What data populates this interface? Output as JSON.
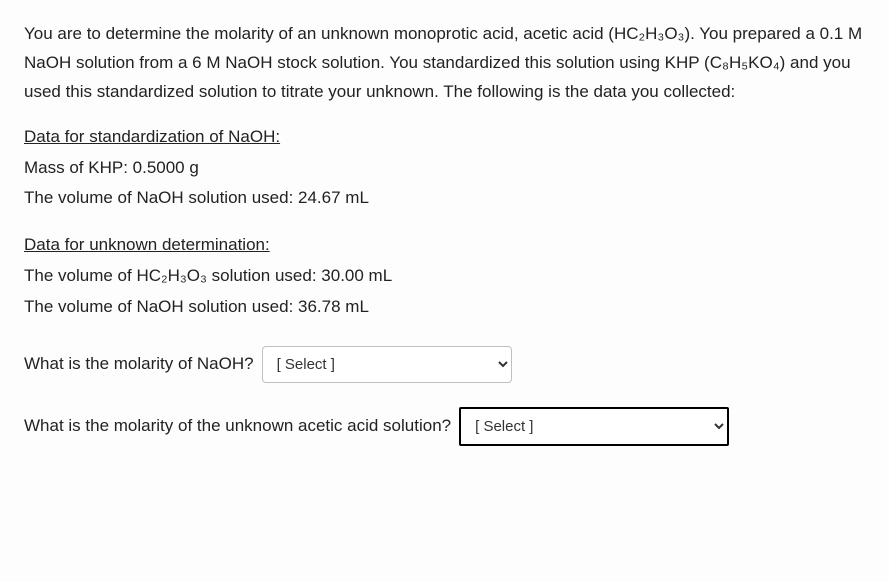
{
  "intro": {
    "text": "You are to determine the molarity of an unknown monoprotic acid, acetic acid (HC₂H₃O₃). You prepared a 0.1 M NaOH solution from a 6 M NaOH stock solution. You standardized this solution using KHP (C₈H₅KO₄) and you used this standardized solution to titrate your unknown. The following is the data you collected:"
  },
  "standardization": {
    "heading": "Data for standardization of NaOH:",
    "mass_label": "Mass of KHP: 0.5000 g",
    "volume_label": "The volume of NaOH solution used: 24.67 mL"
  },
  "unknown": {
    "heading": "Data for unknown determination:",
    "acid_volume_label": "The volume of HC₂H₃O₃ solution used: 30.00 mL",
    "naoh_volume_label": "The volume of NaOH solution used: 36.78 mL"
  },
  "questions": {
    "q1": {
      "label": "What is the molarity of NaOH?",
      "placeholder": "[ Select ]"
    },
    "q2": {
      "label": "What is the molarity of the unknown acetic acid solution?",
      "placeholder": "[ Select ]"
    }
  }
}
